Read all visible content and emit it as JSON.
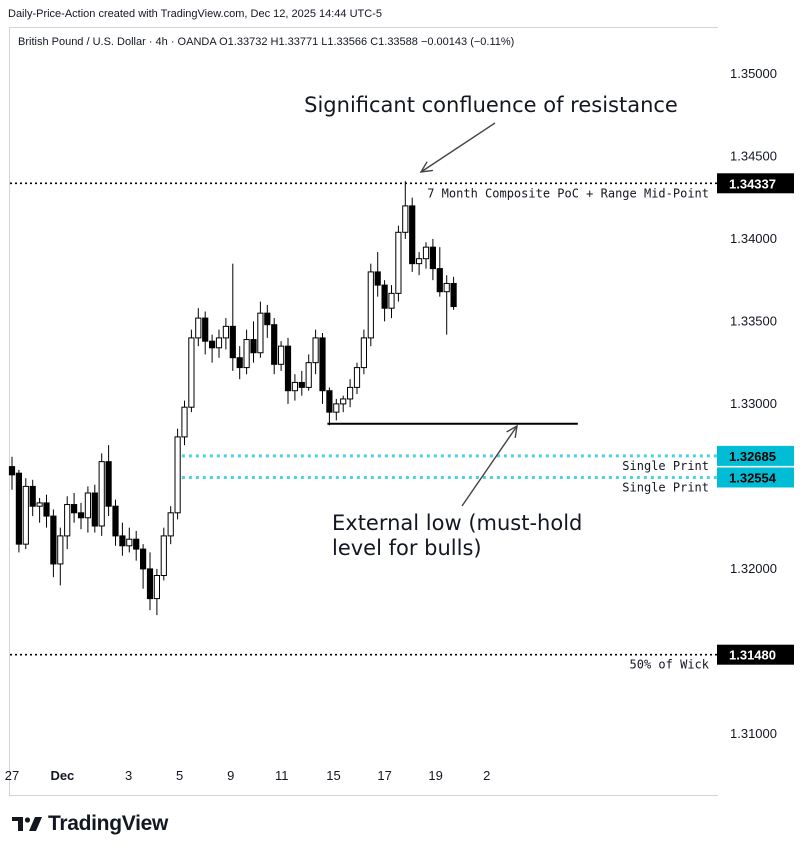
{
  "header": {
    "credit": "Daily-Price-Action created with TradingView.com, Dec 12, 2025 14:44 UTC-5",
    "legend": "British Pound / U.S. Dollar · 4h · OANDA  O1.33732  H1.33771  L1.33566  C1.33588  −0.00143 (−0.11%)"
  },
  "footer": {
    "brand": "TradingView",
    "logo_icon": "tradingview-logo-icon"
  },
  "chart_data": {
    "type": "candlestick",
    "symbol": "British Pound / U.S. Dollar",
    "timeframe": "4h",
    "broker": "OANDA",
    "ylim": [
      1.3085,
      1.353
    ],
    "y_ticks": [
      1.31,
      1.315,
      1.32,
      1.325,
      1.33,
      1.335,
      1.34,
      1.345,
      1.35
    ],
    "y_tick_labels": [
      "1.31000",
      "",
      "1.32000",
      "",
      "1.33000",
      "1.33500",
      "1.34000",
      "1.34500",
      "1.35000"
    ],
    "x_tick_labels": [
      "27",
      "Dec",
      "3",
      "5",
      "9",
      "11",
      "15",
      "17",
      "19",
      "2"
    ],
    "x_tick_positions": [
      0.0,
      7.3,
      16.9,
      24.3,
      31.7,
      39.1,
      46.6,
      54.0,
      61.4,
      68.8
    ],
    "grid": false,
    "candles": [
      [
        1.3262,
        1.3268,
        1.3248,
        1.3257
      ],
      [
        1.3258,
        1.326,
        1.321,
        1.3215
      ],
      [
        1.3215,
        1.3255,
        1.3212,
        1.325
      ],
      [
        1.325,
        1.3254,
        1.3232,
        1.3238
      ],
      [
        1.3238,
        1.3243,
        1.3228,
        1.324
      ],
      [
        1.324,
        1.3245,
        1.3225,
        1.3232
      ],
      [
        1.3232,
        1.3236,
        1.3195,
        1.3203
      ],
      [
        1.3203,
        1.3225,
        1.319,
        1.322
      ],
      [
        1.322,
        1.3244,
        1.3212,
        1.3239
      ],
      [
        1.3239,
        1.3246,
        1.3228,
        1.3234
      ],
      [
        1.3234,
        1.324,
        1.3224,
        1.3231
      ],
      [
        1.3231,
        1.325,
        1.3222,
        1.3246
      ],
      [
        1.3246,
        1.3251,
        1.3222,
        1.3226
      ],
      [
        1.3226,
        1.327,
        1.322,
        1.3265
      ],
      [
        1.3265,
        1.3275,
        1.3232,
        1.3238
      ],
      [
        1.3238,
        1.3242,
        1.3214,
        1.322
      ],
      [
        1.322,
        1.3228,
        1.3208,
        1.3214
      ],
      [
        1.3214,
        1.3225,
        1.321,
        1.3218
      ],
      [
        1.3218,
        1.3223,
        1.3205,
        1.3212
      ],
      [
        1.3212,
        1.3215,
        1.3188,
        1.32
      ],
      [
        1.32,
        1.321,
        1.3175,
        1.3182
      ],
      [
        1.3182,
        1.32,
        1.3172,
        1.3196
      ],
      [
        1.3196,
        1.3225,
        1.3193,
        1.322
      ],
      [
        1.322,
        1.3238,
        1.3215,
        1.3234
      ],
      [
        1.3234,
        1.3285,
        1.323,
        1.328
      ],
      [
        1.328,
        1.3302,
        1.3275,
        1.3298
      ],
      [
        1.3298,
        1.3345,
        1.3295,
        1.334
      ],
      [
        1.334,
        1.3358,
        1.3335,
        1.3352
      ],
      [
        1.3352,
        1.3356,
        1.333,
        1.3338
      ],
      [
        1.3338,
        1.3342,
        1.3325,
        1.3334
      ],
      [
        1.3334,
        1.3345,
        1.3328,
        1.334
      ],
      [
        1.334,
        1.3352,
        1.3333,
        1.3347
      ],
      [
        1.3347,
        1.3385,
        1.332,
        1.3328
      ],
      [
        1.3328,
        1.3335,
        1.3315,
        1.3322
      ],
      [
        1.3322,
        1.3345,
        1.3318,
        1.3339
      ],
      [
        1.3339,
        1.335,
        1.3325,
        1.3331
      ],
      [
        1.3331,
        1.3362,
        1.3328,
        1.3355
      ],
      [
        1.3355,
        1.336,
        1.334,
        1.3348
      ],
      [
        1.3348,
        1.3352,
        1.3318,
        1.3324
      ],
      [
        1.3324,
        1.3338,
        1.332,
        1.3335
      ],
      [
        1.3335,
        1.334,
        1.33,
        1.3308
      ],
      [
        1.3308,
        1.3318,
        1.3302,
        1.3313
      ],
      [
        1.3313,
        1.332,
        1.3305,
        1.331
      ],
      [
        1.331,
        1.333,
        1.3308,
        1.3325
      ],
      [
        1.3325,
        1.3345,
        1.3318,
        1.334
      ],
      [
        1.334,
        1.3343,
        1.33,
        1.3308
      ],
      [
        1.3308,
        1.331,
        1.3287,
        1.3295
      ],
      [
        1.3295,
        1.3303,
        1.329,
        1.33
      ],
      [
        1.33,
        1.3305,
        1.3295,
        1.3303
      ],
      [
        1.3303,
        1.3315,
        1.3298,
        1.331
      ],
      [
        1.331,
        1.3325,
        1.3306,
        1.3322
      ],
      [
        1.3322,
        1.3345,
        1.3318,
        1.334
      ],
      [
        1.334,
        1.3385,
        1.3335,
        1.338
      ],
      [
        1.338,
        1.3392,
        1.3365,
        1.3372
      ],
      [
        1.3372,
        1.3375,
        1.335,
        1.3358
      ],
      [
        1.3358,
        1.3372,
        1.3352,
        1.3367
      ],
      [
        1.3367,
        1.3408,
        1.3362,
        1.3404
      ],
      [
        1.3404,
        1.3435,
        1.34,
        1.342
      ],
      [
        1.342,
        1.3425,
        1.338,
        1.3385
      ],
      [
        1.3385,
        1.3392,
        1.3378,
        1.3388
      ],
      [
        1.3388,
        1.3398,
        1.3382,
        1.3395
      ],
      [
        1.3395,
        1.34,
        1.3375,
        1.3382
      ],
      [
        1.3382,
        1.3395,
        1.3365,
        1.3368
      ],
      [
        1.3368,
        1.3378,
        1.3342,
        1.3373
      ],
      [
        1.3373,
        1.3377,
        1.3357,
        1.3359
      ]
    ],
    "levels": [
      {
        "name": "composite-poc-level",
        "value": 1.34337,
        "price_label": "1.34337",
        "label": "7 Month Composite PoC + Range Mid-Point",
        "color": "#000000",
        "style": "dotted"
      },
      {
        "name": "single-print-upper",
        "value": 1.32685,
        "price_label": "1.32685",
        "label": "Single Print",
        "color": "#4dd0e1",
        "style": "dotted"
      },
      {
        "name": "single-print-lower",
        "value": 1.32554,
        "price_label": "1.32554",
        "label": "Single Print",
        "color": "#4dd0e1",
        "style": "dotted"
      },
      {
        "name": "wick-midpoint-level",
        "value": 1.3148,
        "price_label": "1.31480",
        "label": "50% of Wick",
        "color": "#000000",
        "style": "dotted"
      }
    ],
    "external_low": {
      "value": 1.3288,
      "from_candle": 46,
      "to_candle": 82
    },
    "annotations": {
      "resistance": "Significant confluence of resistance",
      "external_low_line1": "External low (must-hold",
      "external_low_line2": "level for bulls)"
    },
    "colors": {
      "up": "#ffffff",
      "down": "#000000",
      "wick": "#000000",
      "cyan": "#4dd0e1"
    }
  }
}
